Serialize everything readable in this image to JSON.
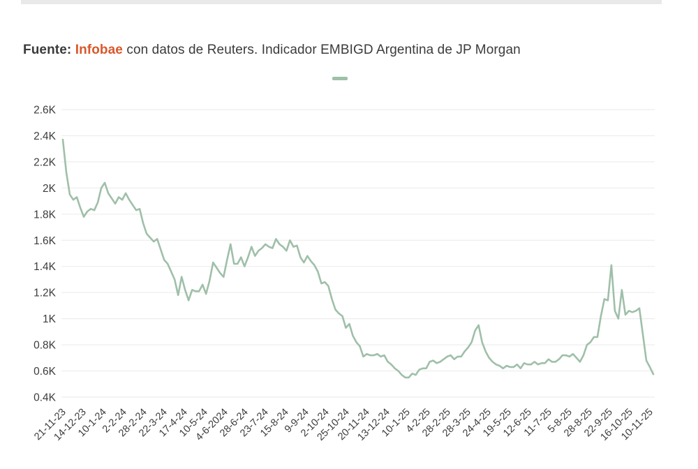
{
  "caption": {
    "source_label": "Fuente:",
    "source_brand": "Infobae",
    "source_rest": " con datos de Reuters. Indicador EMBIGD Argentina de JP Morgan"
  },
  "colors": {
    "line": "#9fbfa9",
    "grid": "#ededed",
    "axis_text": "#3c3c3c",
    "brand_accent": "#d9582b",
    "caption_text": "#3b3b3b",
    "top_strip": "#e9e9e9"
  },
  "legend": {
    "label": "",
    "marker_color": "#9fbfa9"
  },
  "chart_data": {
    "type": "line",
    "title": "Indicador EMBIGD Argentina de JP Morgan",
    "xlabel": "",
    "ylabel": "",
    "grid": true,
    "legend_position": "top-center",
    "ylim": [
      400,
      2600
    ],
    "y_ticks": [
      {
        "label": "2.6K",
        "value": 2600
      },
      {
        "label": "2.4K",
        "value": 2400
      },
      {
        "label": "2.2K",
        "value": 2200
      },
      {
        "label": "2K",
        "value": 2000
      },
      {
        "label": "1.8K",
        "value": 1800
      },
      {
        "label": "1.6K",
        "value": 1600
      },
      {
        "label": "1.4K",
        "value": 1400
      },
      {
        "label": "1.2K",
        "value": 1200
      },
      {
        "label": "1K",
        "value": 1000
      },
      {
        "label": "0.8K",
        "value": 800
      },
      {
        "label": "0.6K",
        "value": 600
      },
      {
        "label": "0.4K",
        "value": 400
      }
    ],
    "x_tick_labels": [
      "21-11-23",
      "14-12-23",
      "10-1-24",
      "2-2-24",
      "28-2-24",
      "22-3-24",
      "17-4-24",
      "10-5-24",
      "4-6-2024",
      "28-6-24",
      "23-7-24",
      "15-8-24",
      "9-9-24",
      "2-10-24",
      "25-10-24",
      "20-11-24",
      "13-12-24",
      "10-1-25",
      "4-2-25",
      "28-2-25",
      "28-3-25",
      "24-4-25",
      "19-5-25",
      "12-6-25",
      "11-7-25",
      "5-8-25",
      "28-8-25",
      "22-9-25",
      "16-10-25",
      "10-11-25"
    ],
    "series": [
      {
        "name": "EMBIGD Argentina",
        "values": [
          2370,
          2120,
          1950,
          1910,
          1930,
          1850,
          1780,
          1820,
          1840,
          1830,
          1890,
          2000,
          2040,
          1960,
          1920,
          1880,
          1930,
          1910,
          1960,
          1910,
          1870,
          1830,
          1840,
          1730,
          1650,
          1620,
          1590,
          1610,
          1530,
          1450,
          1420,
          1360,
          1300,
          1180,
          1320,
          1220,
          1140,
          1220,
          1210,
          1210,
          1260,
          1190,
          1290,
          1430,
          1390,
          1350,
          1320,
          1450,
          1570,
          1420,
          1420,
          1470,
          1400,
          1470,
          1550,
          1480,
          1520,
          1540,
          1570,
          1550,
          1540,
          1610,
          1570,
          1550,
          1520,
          1600,
          1550,
          1560,
          1470,
          1430,
          1480,
          1440,
          1410,
          1360,
          1270,
          1280,
          1250,
          1150,
          1070,
          1040,
          1020,
          930,
          960,
          870,
          820,
          790,
          710,
          730,
          720,
          720,
          730,
          710,
          720,
          670,
          650,
          620,
          600,
          570,
          550,
          550,
          580,
          570,
          610,
          620,
          620,
          670,
          680,
          660,
          670,
          690,
          710,
          720,
          690,
          710,
          710,
          750,
          780,
          820,
          910,
          950,
          820,
          750,
          700,
          670,
          650,
          640,
          620,
          640,
          630,
          630,
          650,
          620,
          660,
          650,
          650,
          670,
          650,
          660,
          660,
          690,
          670,
          670,
          690,
          720,
          720,
          710,
          730,
          700,
          670,
          720,
          800,
          820,
          860,
          860,
          1020,
          1150,
          1140,
          1410,
          1060,
          1000,
          1220,
          1030,
          1060,
          1050,
          1060,
          1080,
          880,
          680,
          630,
          575
        ]
      }
    ]
  }
}
